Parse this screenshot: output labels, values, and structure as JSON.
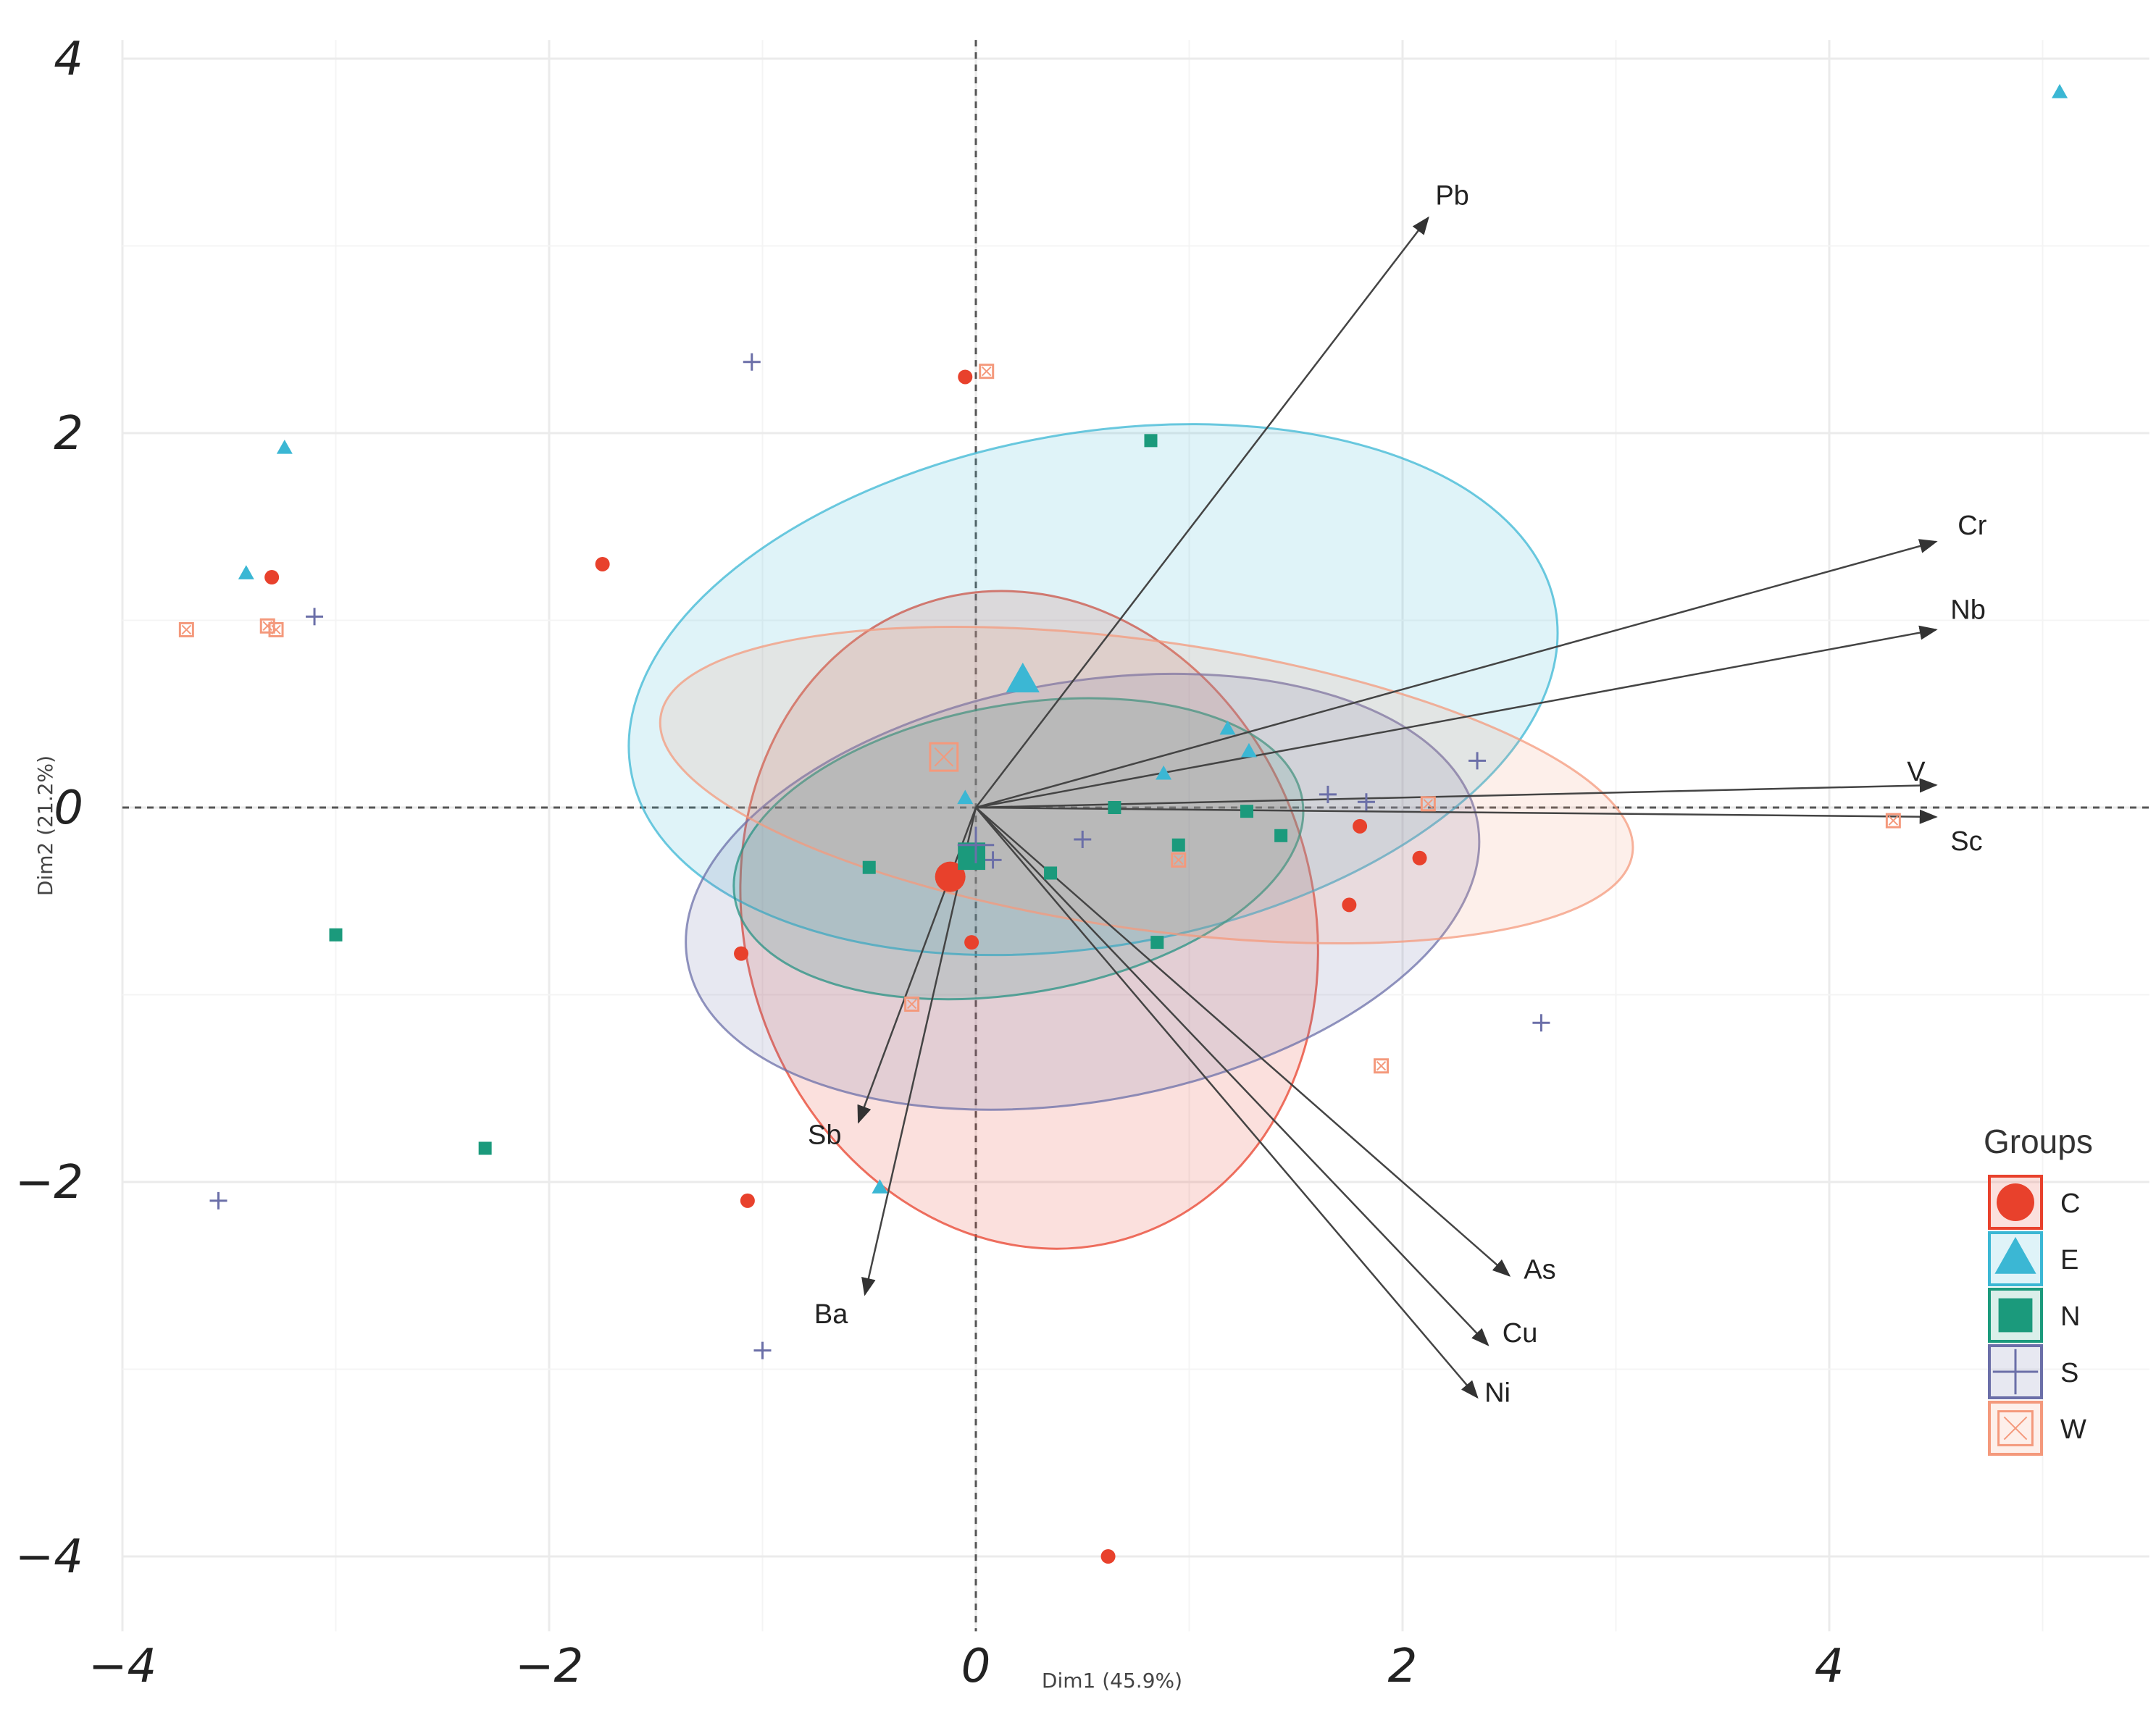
{
  "chart_data": {
    "type": "scatter",
    "subtype": "pca-biplot",
    "xlabel": "Dim1 (45.9%)",
    "ylabel": "Dim2 (21.2%)",
    "xlim": [
      -4,
      5.5
    ],
    "ylim": [
      -4.4,
      4.1
    ],
    "xticks": [
      -4,
      -2,
      0,
      2,
      4
    ],
    "yticks": [
      -4,
      -2,
      0,
      2,
      4
    ],
    "xtick_labels": [
      "−4",
      "−2",
      "0",
      "2",
      "4"
    ],
    "ytick_labels": [
      "−4",
      "−2",
      "0",
      "2",
      "4"
    ],
    "legend_title": "Groups",
    "legend_position": "right",
    "groups": [
      {
        "name": "C",
        "color": "#e8412c",
        "shape": "circle",
        "points": [
          [
            -0.05,
            2.3
          ],
          [
            -1.75,
            1.3
          ],
          [
            -3.3,
            1.23
          ],
          [
            1.8,
            -0.1
          ],
          [
            2.08,
            -0.27
          ],
          [
            1.75,
            -0.52
          ],
          [
            -1.1,
            -0.78
          ],
          [
            -0.02,
            -0.72
          ],
          [
            -1.07,
            -2.1
          ],
          [
            0.62,
            -4.0
          ]
        ],
        "centroid": [
          -0.12,
          -0.37
        ],
        "ellipse": {
          "cx": 0.25,
          "cy": -0.6,
          "rx": 1.33,
          "ry": 1.78,
          "angle": 18
        }
      },
      {
        "name": "E",
        "color": "#3bb7d4",
        "shape": "triangle",
        "points": [
          [
            5.08,
            3.82
          ],
          [
            -3.24,
            1.92
          ],
          [
            -3.42,
            1.25
          ],
          [
            1.18,
            0.42
          ],
          [
            1.28,
            0.3
          ],
          [
            0.88,
            0.18
          ],
          [
            -0.05,
            0.05
          ],
          [
            -0.45,
            -2.03
          ]
        ],
        "centroid": [
          0.22,
          0.68
        ],
        "ellipse": {
          "cx": 0.55,
          "cy": 0.63,
          "rx": 2.2,
          "ry": 1.37,
          "angle": 10
        }
      },
      {
        "name": "N",
        "color": "#1b9a7c",
        "shape": "square",
        "points": [
          [
            0.82,
            1.96
          ],
          [
            1.27,
            -0.02
          ],
          [
            1.43,
            -0.15
          ],
          [
            0.95,
            -0.2
          ],
          [
            0.65,
            0.0
          ],
          [
            0.35,
            -0.35
          ],
          [
            -0.5,
            -0.32
          ],
          [
            0.85,
            -0.72
          ],
          [
            -3.0,
            -0.68
          ],
          [
            -2.3,
            -1.82
          ]
        ],
        "centroid": [
          -0.02,
          -0.26
        ],
        "ellipse": {
          "cx": 0.2,
          "cy": -0.22,
          "rx": 1.35,
          "ry": 0.77,
          "angle": 10
        }
      },
      {
        "name": "S",
        "color": "#6b6fa8",
        "shape": "square-cross",
        "points": [
          [
            -1.05,
            2.38
          ],
          [
            -3.1,
            1.02
          ],
          [
            2.35,
            0.25
          ],
          [
            1.65,
            0.07
          ],
          [
            1.83,
            0.03
          ],
          [
            0.5,
            -0.17
          ],
          [
            0.08,
            -0.28
          ],
          [
            2.65,
            -1.15
          ],
          [
            -3.55,
            -2.1
          ],
          [
            -1.0,
            -2.9
          ]
        ],
        "centroid": [
          0.0,
          -0.2
        ],
        "ellipse": {
          "cx": 0.5,
          "cy": -0.45,
          "rx": 1.88,
          "ry": 1.12,
          "angle": 10
        }
      },
      {
        "name": "W",
        "color": "#f4997c",
        "shape": "square-x",
        "points": [
          [
            0.05,
            2.33
          ],
          [
            -3.7,
            0.95
          ],
          [
            -3.32,
            0.97
          ],
          [
            -3.28,
            0.95
          ],
          [
            2.12,
            0.02
          ],
          [
            4.3,
            -0.07
          ],
          [
            0.95,
            -0.28
          ],
          [
            -0.3,
            -1.05
          ],
          [
            1.9,
            -1.38
          ]
        ],
        "centroid": [
          -0.15,
          0.27
        ],
        "ellipse": {
          "cx": 0.8,
          "cy": 0.12,
          "rx": 2.3,
          "ry": 0.77,
          "angle": -8
        }
      }
    ],
    "variables": [
      {
        "name": "Pb",
        "x": 2.12,
        "y": 3.15
      },
      {
        "name": "Cr",
        "x": 4.5,
        "y": 1.42
      },
      {
        "name": "Nb",
        "x": 4.5,
        "y": 0.95
      },
      {
        "name": "V",
        "x": 4.5,
        "y": 0.12
      },
      {
        "name": "Sc",
        "x": 4.5,
        "y": -0.05
      },
      {
        "name": "As",
        "x": 2.5,
        "y": -2.5
      },
      {
        "name": "Cu",
        "x": 2.4,
        "y": -2.87
      },
      {
        "name": "Ni",
        "x": 2.35,
        "y": -3.15
      },
      {
        "name": "Sb",
        "x": -0.55,
        "y": -1.68
      },
      {
        "name": "Ba",
        "x": -0.52,
        "y": -2.6
      }
    ]
  }
}
